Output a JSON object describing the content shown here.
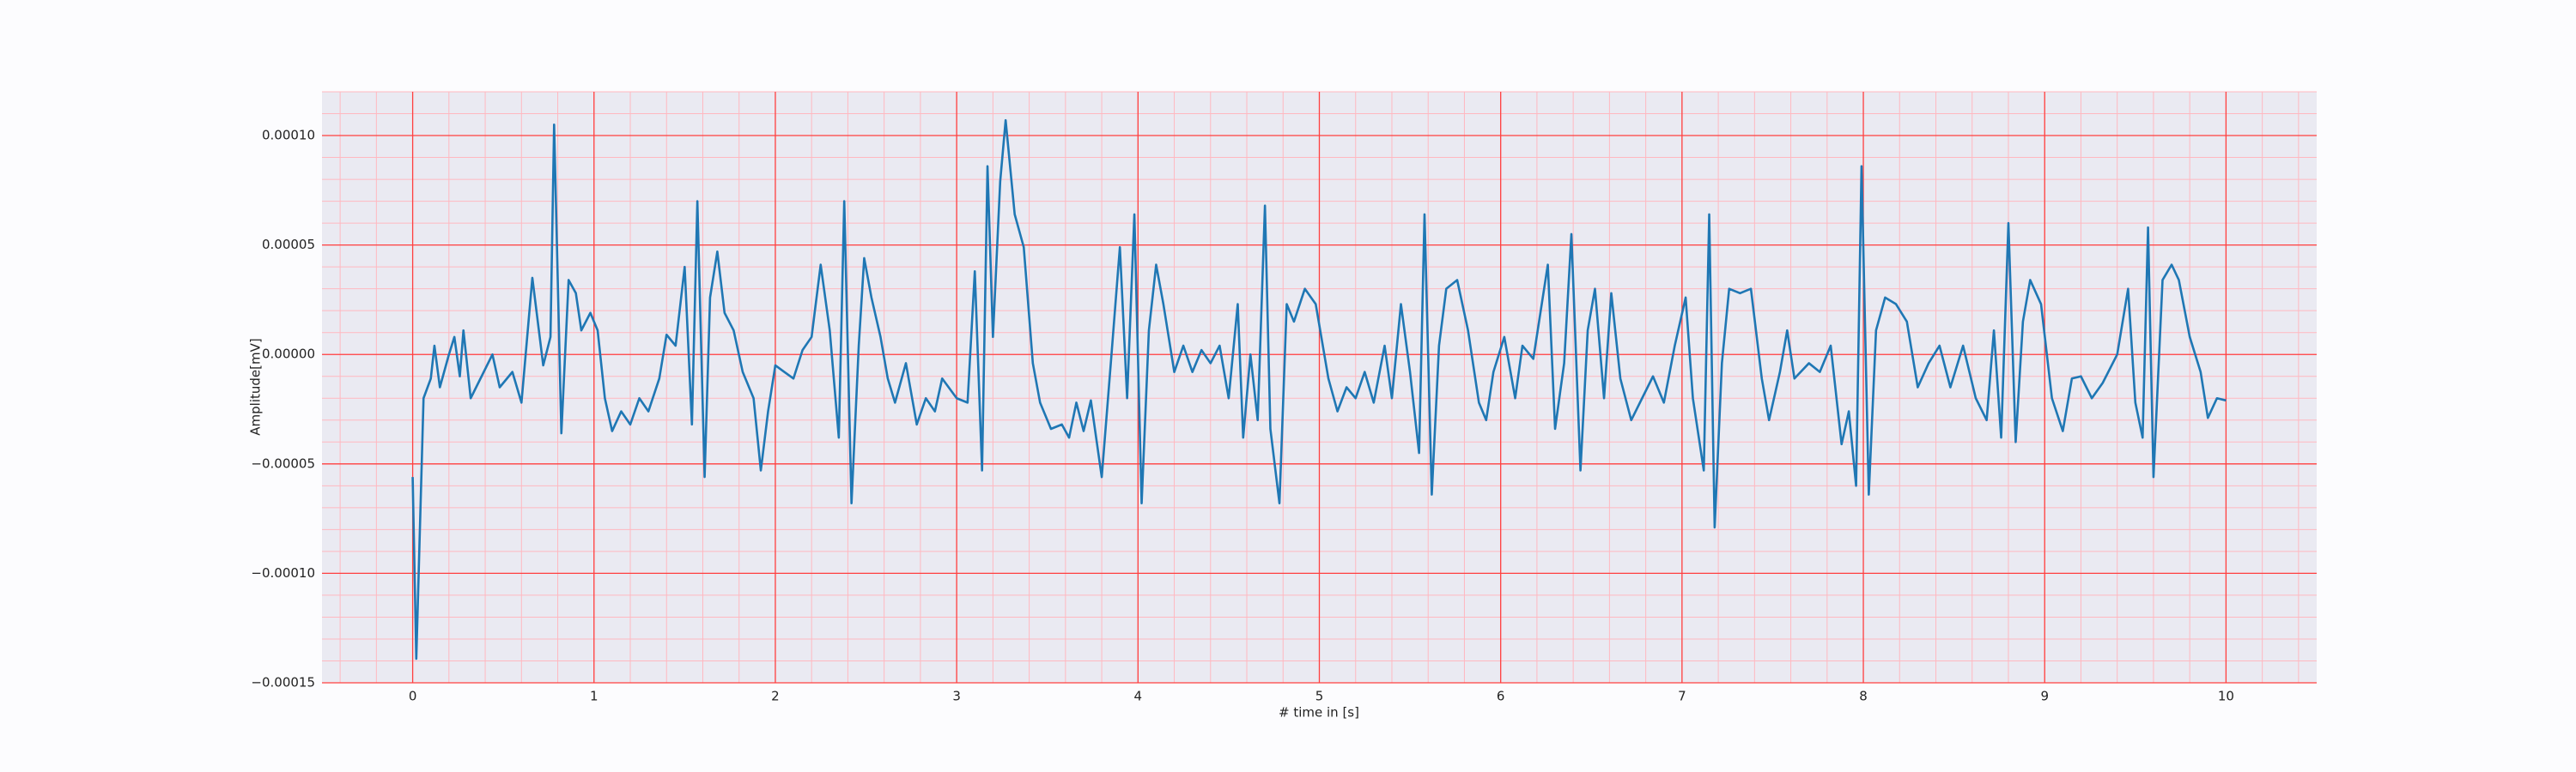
{
  "chart_data": {
    "type": "line",
    "xlabel": "# time in [s]",
    "ylabel": "Amplitude[mV]",
    "color": "#1f77b4",
    "xlim": [
      -0.5,
      10.5
    ],
    "xticks": [
      0,
      1,
      2,
      3,
      4,
      5,
      6,
      7,
      8,
      9,
      10
    ],
    "ylim": [
      -0.00015,
      0.00012
    ],
    "yticks": [
      {
        "value": -0.00015,
        "label": "−0.00015"
      },
      {
        "value": -0.0001,
        "label": "−0.00010"
      },
      {
        "value": -5e-05,
        "label": "−0.00005"
      },
      {
        "value": 0,
        "label": "0.00000"
      },
      {
        "value": 5e-05,
        "label": "0.00005"
      },
      {
        "value": 0.0001,
        "label": "0.00010"
      }
    ],
    "grid": true,
    "minor_grid": true,
    "x": [
      0,
      0.02,
      0.06,
      0.1,
      0.12,
      0.15,
      0.2,
      0.23,
      0.26,
      0.28,
      0.32,
      0.38,
      0.44,
      0.48,
      0.55,
      0.6,
      0.66,
      0.72,
      0.76,
      0.78,
      0.82,
      0.86,
      0.9,
      0.93,
      0.98,
      1.02,
      1.06,
      1.1,
      1.15,
      1.2,
      1.25,
      1.3,
      1.36,
      1.4,
      1.45,
      1.5,
      1.54,
      1.57,
      1.61,
      1.64,
      1.68,
      1.72,
      1.77,
      1.82,
      1.88,
      1.92,
      1.96,
      2.0,
      2.05,
      2.1,
      2.15,
      2.2,
      2.25,
      2.3,
      2.35,
      2.38,
      2.42,
      2.46,
      2.49,
      2.53,
      2.58,
      2.62,
      2.66,
      2.72,
      2.78,
      2.83,
      2.88,
      2.92,
      3.0,
      3.06,
      3.1,
      3.14,
      3.17,
      3.2,
      3.24,
      3.27,
      3.32,
      3.37,
      3.42,
      3.46,
      3.52,
      3.58,
      3.62,
      3.66,
      3.7,
      3.74,
      3.8,
      3.85,
      3.9,
      3.94,
      3.98,
      4.02,
      4.06,
      4.1,
      4.14,
      4.2,
      4.25,
      4.3,
      4.35,
      4.4,
      4.45,
      4.5,
      4.55,
      4.58,
      4.62,
      4.66,
      4.7,
      4.73,
      4.78,
      4.82,
      4.86,
      4.92,
      4.98,
      5.05,
      5.1,
      5.15,
      5.2,
      5.25,
      5.3,
      5.36,
      5.4,
      5.45,
      5.5,
      5.55,
      5.58,
      5.62,
      5.66,
      5.7,
      5.76,
      5.82,
      5.88,
      5.92,
      5.96,
      6.02,
      6.08,
      6.12,
      6.18,
      6.26,
      6.3,
      6.35,
      6.39,
      6.44,
      6.48,
      6.52,
      6.57,
      6.61,
      6.66,
      6.72,
      6.78,
      6.84,
      6.9,
      6.96,
      7.02,
      7.06,
      7.12,
      7.15,
      7.18,
      7.22,
      7.26,
      7.32,
      7.38,
      7.44,
      7.48,
      7.54,
      7.58,
      7.62,
      7.7,
      7.76,
      7.82,
      7.88,
      7.92,
      7.96,
      7.99,
      8.03,
      8.07,
      8.12,
      8.18,
      8.24,
      8.3,
      8.36,
      8.42,
      8.48,
      8.55,
      8.62,
      8.68,
      8.72,
      8.76,
      8.8,
      8.84,
      8.88,
      8.92,
      8.98,
      9.04,
      9.1,
      9.15,
      9.2,
      9.26,
      9.32,
      9.4,
      9.46,
      9.5,
      9.54,
      9.57,
      9.6,
      9.65,
      9.7,
      9.74,
      9.8,
      9.86,
      9.9,
      9.95,
      10.0
    ],
    "values": [
      -5.6e-05,
      -0.000139,
      -2e-05,
      -1.1e-05,
      4e-06,
      -1.5e-05,
      0,
      8e-06,
      -1e-05,
      1.1e-05,
      -2e-05,
      -1e-05,
      0,
      -1.5e-05,
      -8e-06,
      -2.2e-05,
      3.5e-05,
      -5e-06,
      8e-06,
      0.000105,
      -3.6e-05,
      3.4e-05,
      2.8e-05,
      1.1e-05,
      1.9e-05,
      1.1e-05,
      -2e-05,
      -3.5e-05,
      -2.6e-05,
      -3.2e-05,
      -2e-05,
      -2.6e-05,
      -1.1e-05,
      9e-06,
      4e-06,
      4e-05,
      -3.2e-05,
      7e-05,
      -5.6e-05,
      2.6e-05,
      4.7e-05,
      1.9e-05,
      1.1e-05,
      -8e-06,
      -2e-05,
      -5.3e-05,
      -2.6e-05,
      -5e-06,
      -8e-06,
      -1.1e-05,
      2e-06,
      8e-06,
      4.1e-05,
      1.1e-05,
      -3.8e-05,
      7e-05,
      -6.8e-05,
      4e-06,
      4.4e-05,
      2.6e-05,
      8e-06,
      -1.1e-05,
      -2.2e-05,
      -4e-06,
      -3.2e-05,
      -2e-05,
      -2.6e-05,
      -1.1e-05,
      -2e-05,
      -2.2e-05,
      3.8e-05,
      -5.3e-05,
      8.6e-05,
      8e-06,
      7.9e-05,
      0.000107,
      6.4e-05,
      4.9e-05,
      -4e-06,
      -2.2e-05,
      -3.4e-05,
      -3.2e-05,
      -3.8e-05,
      -2.2e-05,
      -3.5e-05,
      -2.1e-05,
      -5.6e-05,
      -4e-06,
      4.9e-05,
      -2e-05,
      6.4e-05,
      -6.8e-05,
      1.1e-05,
      4.1e-05,
      2.3e-05,
      -8e-06,
      4e-06,
      -8e-06,
      2e-06,
      -4e-06,
      4e-06,
      -2e-05,
      2.3e-05,
      -3.8e-05,
      0,
      -3e-05,
      6.8e-05,
      -3.4e-05,
      -6.8e-05,
      2.3e-05,
      1.5e-05,
      3e-05,
      2.3e-05,
      -1.1e-05,
      -2.6e-05,
      -1.5e-05,
      -2e-05,
      -8e-06,
      -2.2e-05,
      4e-06,
      -2e-05,
      2.3e-05,
      -8e-06,
      -4.5e-05,
      6.4e-05,
      -6.4e-05,
      4e-06,
      3e-05,
      3.4e-05,
      1.1e-05,
      -2.2e-05,
      -3e-05,
      -8e-06,
      8e-06,
      -2e-05,
      4e-06,
      -2e-06,
      4.1e-05,
      -3.4e-05,
      -4e-06,
      5.5e-05,
      -5.3e-05,
      1.1e-05,
      3e-05,
      -2e-05,
      2.8e-05,
      -1.1e-05,
      -3e-05,
      -2e-05,
      -1e-05,
      -2.2e-05,
      4e-06,
      2.6e-05,
      -2e-05,
      -5.3e-05,
      6.4e-05,
      -7.9e-05,
      -4e-06,
      3e-05,
      2.8e-05,
      3e-05,
      -1.1e-05,
      -3e-05,
      -8e-06,
      1.1e-05,
      -1.1e-05,
      -4e-06,
      -8e-06,
      4e-06,
      -4.1e-05,
      -2.6e-05,
      -6e-05,
      8.6e-05,
      -6.4e-05,
      1.1e-05,
      2.6e-05,
      2.3e-05,
      1.5e-05,
      -1.5e-05,
      -4e-06,
      4e-06,
      -1.5e-05,
      4e-06,
      -2e-05,
      -3e-05,
      1.1e-05,
      -3.8e-05,
      6e-05,
      -4e-05,
      1.5e-05,
      3.4e-05,
      2.3e-05,
      -2e-05,
      -3.5e-05,
      -1.1e-05,
      -1e-05,
      -2e-05,
      -1.3e-05,
      0,
      3e-05,
      -2.2e-05,
      -3.8e-05,
      5.8e-05,
      -5.6e-05,
      3.4e-05,
      4.1e-05,
      3.4e-05,
      8e-06,
      -8e-06,
      -2.9e-05,
      -2e-05,
      -2.1e-05
    ]
  }
}
